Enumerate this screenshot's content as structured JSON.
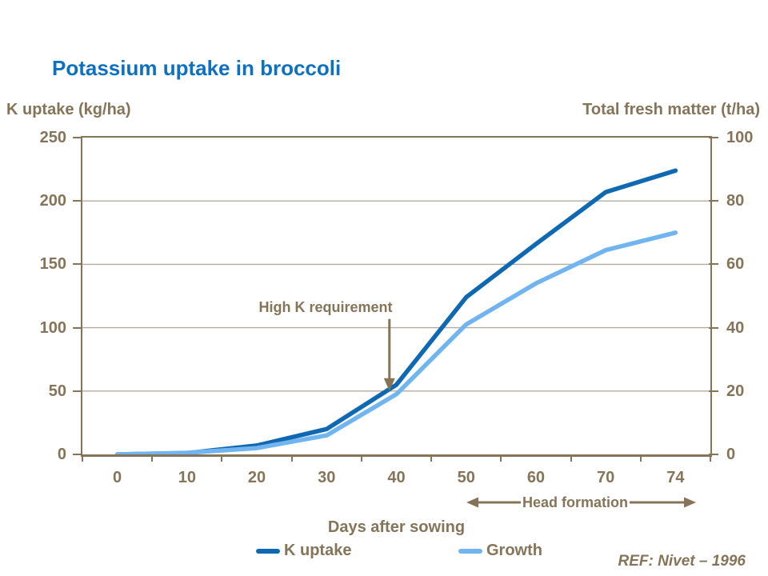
{
  "title": "Potassium uptake in broccoli",
  "reference": "REF: Nivet – 1996",
  "colors": {
    "title_blue": "#0d70c0",
    "text_brown": "#867458",
    "gridline": "#b5ab9d",
    "k_uptake_line": "#0e68b2",
    "growth_line": "#70b4f0"
  },
  "chart_data": {
    "type": "line",
    "x": [
      0,
      10,
      20,
      30,
      40,
      50,
      60,
      70,
      74
    ],
    "x_tick_labels": [
      "0",
      "10",
      "20",
      "30",
      "40",
      "50",
      "60",
      "70",
      "74"
    ],
    "xlabel": "Days after sowing",
    "left_axis": {
      "title": "K uptake (kg/ha)",
      "min": 0,
      "max": 250,
      "ticks": [
        0,
        50,
        100,
        150,
        200,
        250
      ]
    },
    "right_axis": {
      "title": "Total fresh matter (t/ha)",
      "min": 0,
      "max": 100,
      "ticks": [
        0,
        20,
        40,
        60,
        80,
        100
      ]
    },
    "series": [
      {
        "name": "K uptake",
        "axis": "left",
        "color": "#0e68b2",
        "values": [
          0,
          1,
          7,
          20,
          55,
          124,
          166,
          207,
          224
        ]
      },
      {
        "name": "Growth",
        "axis": "right",
        "color": "#70b4f0",
        "values": [
          0,
          0.5,
          2,
          6,
          19,
          41,
          54,
          64.5,
          70
        ]
      }
    ],
    "annotation": {
      "text": "High K requirement",
      "points_at_day": 39,
      "points_at_left_value": 50
    },
    "head_formation": {
      "text": "Head formation",
      "from_day": 50,
      "to_day": 74
    },
    "grid": "horizontal",
    "legend_position": "bottom"
  }
}
